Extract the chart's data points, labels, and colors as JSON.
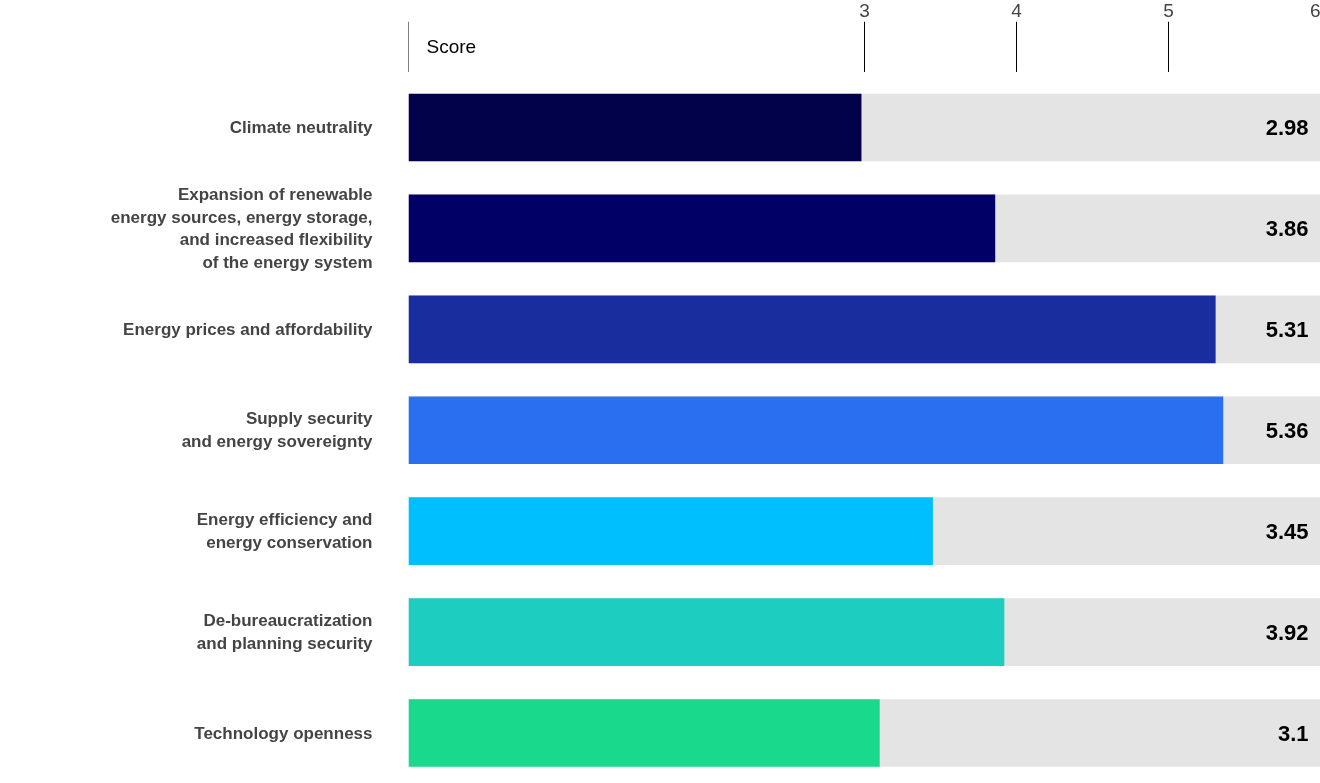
{
  "chart_data": {
    "type": "bar",
    "orientation": "horizontal",
    "xlabel": "Score",
    "categories": [
      "Climate neutrality",
      "Expansion of renewable\nenergy sources, energy storage,\nand increased flexibility\nof the energy system",
      "Energy prices and affordability",
      "Supply security\nand energy sovereignty",
      "Energy efficiency and\nenergy conservation",
      "De-bureaucratization\nand planning security",
      "Technology openness"
    ],
    "values": [
      2.98,
      3.86,
      5.31,
      5.36,
      3.45,
      3.92,
      3.1
    ],
    "colors": [
      "#02024a",
      "#000066",
      "#192d9e",
      "#2a6fef",
      "#00bfff",
      "#1ccdc0",
      "#19d98c"
    ],
    "xlim": [
      0,
      6
    ],
    "xticks": [
      3,
      4,
      5,
      6
    ],
    "grid": false,
    "data_labels": true
  }
}
